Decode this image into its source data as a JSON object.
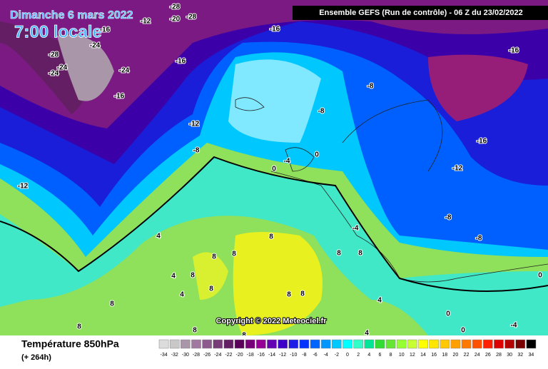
{
  "header": {
    "title": "Dimanche 6 mars 2022",
    "time": "7:00 locale",
    "run": "Ensemble GEFS  (Run de contrôle)  -  06 Z du 23/02/2022"
  },
  "map": {
    "copyright": "Copyright © 2022 Meteociel.fr",
    "contour_labels": [
      -28,
      -20,
      -28,
      -12,
      -16,
      -28,
      -24,
      -24,
      -24,
      -24,
      -16,
      -16,
      -16,
      -16,
      -12,
      -8,
      -8,
      -8,
      -16,
      -12,
      -12,
      -8,
      -8,
      0,
      0,
      -4,
      -4,
      4,
      4,
      4,
      8,
      8,
      8,
      8,
      8,
      8,
      8,
      8,
      8,
      8,
      8,
      8,
      4,
      4,
      0,
      0,
      -4,
      0,
      8
    ]
  },
  "footer": {
    "variable": "Température 850hPa",
    "lead": "(+ 264h)"
  },
  "legend": {
    "values": [
      -34,
      -32,
      -30,
      -28,
      -26,
      -24,
      -22,
      -20,
      -18,
      -16,
      -14,
      -12,
      -10,
      -8,
      -6,
      -4,
      -2,
      0,
      2,
      4,
      6,
      8,
      10,
      12,
      14,
      16,
      18,
      20,
      22,
      24,
      26,
      28,
      30,
      32,
      34
    ],
    "colors": [
      "#dcdcdc",
      "#c8c8c8",
      "#a996a9",
      "#a078a0",
      "#8c5a8c",
      "#783c78",
      "#641e64",
      "#5a005a",
      "#780078",
      "#960096",
      "#6400b4",
      "#3c00c8",
      "#1e1ee6",
      "#0032ff",
      "#0064ff",
      "#0096ff",
      "#00c8ff",
      "#00ffff",
      "#32ffc8",
      "#00e696",
      "#32dc32",
      "#64e632",
      "#96ff32",
      "#c8ff32",
      "#ffff00",
      "#ffe600",
      "#ffc800",
      "#ffa000",
      "#ff7800",
      "#ff5000",
      "#ff1e00",
      "#dc0000",
      "#b40000",
      "#780000",
      "#000000"
    ]
  }
}
